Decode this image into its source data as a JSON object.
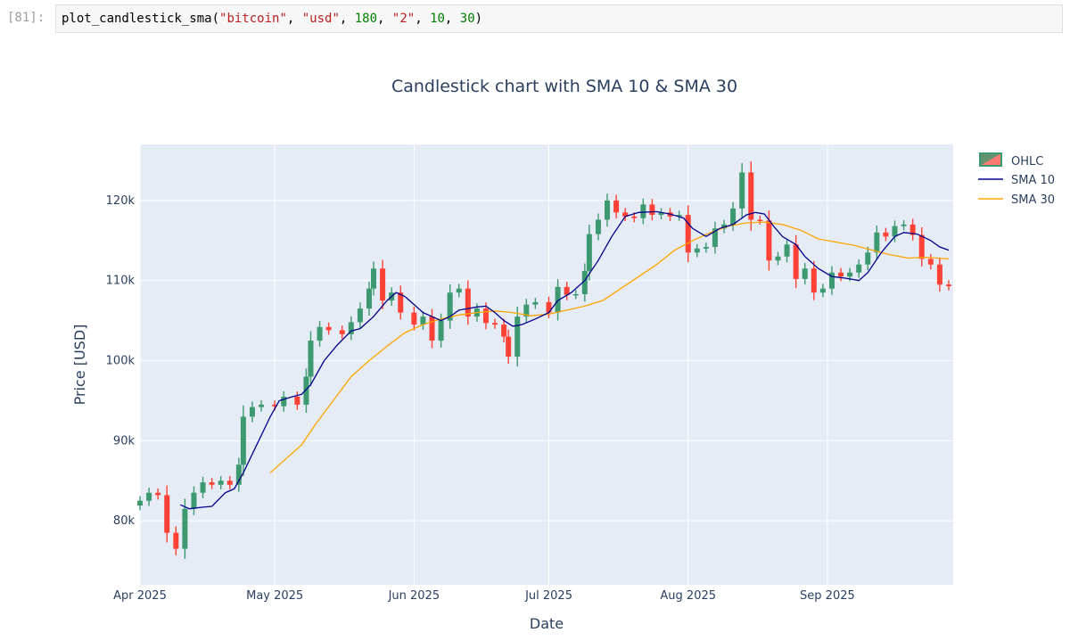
{
  "notebook": {
    "prompt": "[81]:",
    "code": {
      "fn": "plot_candlestick_sma(",
      "arg1": "\"bitcoin\"",
      "arg2": "\"usd\"",
      "arg3": "180",
      "arg4": "\"2\"",
      "arg5": "10",
      "arg6": "30",
      "close": ")",
      "sep": ", "
    }
  },
  "chart_data": {
    "type": "candlestick",
    "title": "Candlestick chart with SMA 10 & SMA 30",
    "xlabel": "Date",
    "ylabel": "Price [USD]",
    "xlim": [
      "2025-04-01",
      "2025-09-29"
    ],
    "ylim": [
      72000,
      127000
    ],
    "xticks": [
      {
        "date": "2025-04-01",
        "label": "Apr 2025"
      },
      {
        "date": "2025-05-01",
        "label": "May 2025"
      },
      {
        "date": "2025-06-01",
        "label": "Jun 2025"
      },
      {
        "date": "2025-07-01",
        "label": "Jul 2025"
      },
      {
        "date": "2025-08-01",
        "label": "Aug 2025"
      },
      {
        "date": "2025-09-01",
        "label": "Sep 2025"
      }
    ],
    "yticks": [
      {
        "value": 80000,
        "label": "80k"
      },
      {
        "value": 90000,
        "label": "90k"
      },
      {
        "value": 100000,
        "label": "100k"
      },
      {
        "value": 110000,
        "label": "110k"
      },
      {
        "value": 120000,
        "label": "120k"
      }
    ],
    "grid": true,
    "legend_position": "top-right",
    "colors": {
      "increasing": "#3d9970",
      "decreasing": "#ff4136",
      "sma_short": "#00008b",
      "sma_long": "#ffa500",
      "plot_bg": "#e5ecf6",
      "grid": "#ffffff"
    },
    "legend": [
      "OHLC",
      "SMA 10",
      "SMA 30"
    ],
    "close_points": [
      [
        "2025-04-01",
        82500
      ],
      [
        "2025-04-03",
        83500
      ],
      [
        "2025-04-05",
        83200
      ],
      [
        "2025-04-07",
        78500
      ],
      [
        "2025-04-09",
        76500
      ],
      [
        "2025-04-11",
        81500
      ],
      [
        "2025-04-13",
        83500
      ],
      [
        "2025-04-15",
        84800
      ],
      [
        "2025-04-17",
        84500
      ],
      [
        "2025-04-19",
        85000
      ],
      [
        "2025-04-21",
        84500
      ],
      [
        "2025-04-23",
        87000
      ],
      [
        "2025-04-24",
        93000
      ],
      [
        "2025-04-26",
        94200
      ],
      [
        "2025-04-28",
        94500
      ],
      [
        "2025-05-01",
        94300
      ],
      [
        "2025-05-03",
        95500
      ],
      [
        "2025-05-06",
        94500
      ],
      [
        "2025-05-08",
        98000
      ],
      [
        "2025-05-09",
        102500
      ],
      [
        "2025-05-11",
        104200
      ],
      [
        "2025-05-13",
        103800
      ],
      [
        "2025-05-16",
        103300
      ],
      [
        "2025-05-18",
        104800
      ],
      [
        "2025-05-20",
        106500
      ],
      [
        "2025-05-22",
        109000
      ],
      [
        "2025-05-23",
        111500
      ],
      [
        "2025-05-25",
        107500
      ],
      [
        "2025-05-27",
        108500
      ],
      [
        "2025-05-29",
        106000
      ],
      [
        "2025-06-01",
        104500
      ],
      [
        "2025-06-03",
        105500
      ],
      [
        "2025-06-05",
        102500
      ],
      [
        "2025-06-07",
        105000
      ],
      [
        "2025-06-09",
        108500
      ],
      [
        "2025-06-11",
        109000
      ],
      [
        "2025-06-13",
        105500
      ],
      [
        "2025-06-15",
        106500
      ],
      [
        "2025-06-17",
        104700
      ],
      [
        "2025-06-19",
        104500
      ],
      [
        "2025-06-21",
        103000
      ],
      [
        "2025-06-22",
        100500
      ],
      [
        "2025-06-24",
        105500
      ],
      [
        "2025-06-26",
        107000
      ],
      [
        "2025-06-28",
        107300
      ],
      [
        "2025-07-01",
        106000
      ],
      [
        "2025-07-03",
        109200
      ],
      [
        "2025-07-05",
        108200
      ],
      [
        "2025-07-07",
        108300
      ],
      [
        "2025-07-09",
        111200
      ],
      [
        "2025-07-10",
        115800
      ],
      [
        "2025-07-12",
        117600
      ],
      [
        "2025-07-14",
        120000
      ],
      [
        "2025-07-16",
        118500
      ],
      [
        "2025-07-18",
        118000
      ],
      [
        "2025-07-20",
        117800
      ],
      [
        "2025-07-22",
        119500
      ],
      [
        "2025-07-24",
        118200
      ],
      [
        "2025-07-26",
        118500
      ],
      [
        "2025-07-28",
        118000
      ],
      [
        "2025-07-30",
        118200
      ],
      [
        "2025-08-01",
        113500
      ],
      [
        "2025-08-03",
        114000
      ],
      [
        "2025-08-05",
        114200
      ],
      [
        "2025-08-07",
        116500
      ],
      [
        "2025-08-09",
        117000
      ],
      [
        "2025-08-11",
        119000
      ],
      [
        "2025-08-13",
        123500
      ],
      [
        "2025-08-15",
        117600
      ],
      [
        "2025-08-17",
        117500
      ],
      [
        "2025-08-19",
        112500
      ],
      [
        "2025-08-21",
        113000
      ],
      [
        "2025-08-23",
        114500
      ],
      [
        "2025-08-25",
        110200
      ],
      [
        "2025-08-27",
        111500
      ],
      [
        "2025-08-29",
        108500
      ],
      [
        "2025-08-31",
        109000
      ],
      [
        "2025-09-02",
        111000
      ],
      [
        "2025-09-04",
        110500
      ],
      [
        "2025-09-06",
        111000
      ],
      [
        "2025-09-08",
        112000
      ],
      [
        "2025-09-10",
        113500
      ],
      [
        "2025-09-12",
        116000
      ],
      [
        "2025-09-14",
        115500
      ],
      [
        "2025-09-16",
        116800
      ],
      [
        "2025-09-18",
        117000
      ],
      [
        "2025-09-20",
        115700
      ],
      [
        "2025-09-22",
        112700
      ],
      [
        "2025-09-24",
        112000
      ],
      [
        "2025-09-26",
        109500
      ],
      [
        "2025-09-28",
        109300
      ]
    ],
    "sma_10": [
      [
        "2025-04-10",
        82000
      ],
      [
        "2025-04-12",
        81500
      ],
      [
        "2025-04-15",
        81700
      ],
      [
        "2025-04-17",
        81800
      ],
      [
        "2025-04-20",
        83500
      ],
      [
        "2025-04-22",
        84000
      ],
      [
        "2025-04-24",
        86000
      ],
      [
        "2025-04-27",
        89500
      ],
      [
        "2025-04-30",
        93000
      ],
      [
        "2025-05-02",
        95000
      ],
      [
        "2025-05-05",
        95500
      ],
      [
        "2025-05-07",
        95800
      ],
      [
        "2025-05-09",
        97000
      ],
      [
        "2025-05-12",
        100000
      ],
      [
        "2025-05-15",
        102000
      ],
      [
        "2025-05-18",
        103700
      ],
      [
        "2025-05-20",
        104000
      ],
      [
        "2025-05-23",
        105500
      ],
      [
        "2025-05-26",
        107500
      ],
      [
        "2025-05-28",
        108500
      ],
      [
        "2025-05-30",
        108000
      ],
      [
        "2025-06-01",
        107000
      ],
      [
        "2025-06-03",
        106000
      ],
      [
        "2025-06-05",
        105500
      ],
      [
        "2025-06-07",
        105000
      ],
      [
        "2025-06-09",
        105500
      ],
      [
        "2025-06-11",
        106300
      ],
      [
        "2025-06-13",
        106500
      ],
      [
        "2025-06-15",
        106700
      ],
      [
        "2025-06-17",
        106800
      ],
      [
        "2025-06-19",
        106000
      ],
      [
        "2025-06-21",
        105000
      ],
      [
        "2025-06-23",
        104300
      ],
      [
        "2025-06-25",
        104500
      ],
      [
        "2025-06-28",
        105200
      ],
      [
        "2025-07-01",
        106000
      ],
      [
        "2025-07-03",
        107500
      ],
      [
        "2025-07-06",
        108500
      ],
      [
        "2025-07-09",
        110000
      ],
      [
        "2025-07-12",
        112500
      ],
      [
        "2025-07-15",
        115500
      ],
      [
        "2025-07-18",
        118000
      ],
      [
        "2025-07-21",
        118500
      ],
      [
        "2025-07-25",
        118600
      ],
      [
        "2025-07-28",
        118300
      ],
      [
        "2025-07-31",
        117800
      ],
      [
        "2025-08-02",
        116500
      ],
      [
        "2025-08-05",
        115500
      ],
      [
        "2025-08-08",
        116500
      ],
      [
        "2025-08-11",
        117000
      ],
      [
        "2025-08-14",
        118200
      ],
      [
        "2025-08-16",
        118500
      ],
      [
        "2025-08-18",
        118300
      ],
      [
        "2025-08-20",
        116800
      ],
      [
        "2025-08-22",
        115500
      ],
      [
        "2025-08-25",
        114500
      ],
      [
        "2025-08-27",
        113000
      ],
      [
        "2025-08-30",
        111500
      ],
      [
        "2025-09-02",
        110500
      ],
      [
        "2025-09-05",
        110300
      ],
      [
        "2025-09-08",
        110000
      ],
      [
        "2025-09-10",
        111000
      ],
      [
        "2025-09-13",
        113500
      ],
      [
        "2025-09-16",
        115500
      ],
      [
        "2025-09-18",
        116000
      ],
      [
        "2025-09-21",
        115800
      ],
      [
        "2025-09-24",
        115000
      ],
      [
        "2025-09-26",
        114200
      ],
      [
        "2025-09-28",
        113800
      ]
    ],
    "sma_30": [
      [
        "2025-04-30",
        86000
      ],
      [
        "2025-05-04",
        88000
      ],
      [
        "2025-05-07",
        89500
      ],
      [
        "2025-05-10",
        92000
      ],
      [
        "2025-05-14",
        95000
      ],
      [
        "2025-05-18",
        98000
      ],
      [
        "2025-05-22",
        100000
      ],
      [
        "2025-05-26",
        101800
      ],
      [
        "2025-05-30",
        103500
      ],
      [
        "2025-06-03",
        104500
      ],
      [
        "2025-06-07",
        105200
      ],
      [
        "2025-06-11",
        105700
      ],
      [
        "2025-06-15",
        106000
      ],
      [
        "2025-06-19",
        106200
      ],
      [
        "2025-06-23",
        106000
      ],
      [
        "2025-06-27",
        105600
      ],
      [
        "2025-07-01",
        105800
      ],
      [
        "2025-07-05",
        106300
      ],
      [
        "2025-07-09",
        106800
      ],
      [
        "2025-07-13",
        107500
      ],
      [
        "2025-07-17",
        109000
      ],
      [
        "2025-07-21",
        110500
      ],
      [
        "2025-07-25",
        112000
      ],
      [
        "2025-07-29",
        113800
      ],
      [
        "2025-08-02",
        115000
      ],
      [
        "2025-08-06",
        116000
      ],
      [
        "2025-08-10",
        116800
      ],
      [
        "2025-08-14",
        117200
      ],
      [
        "2025-08-18",
        117300
      ],
      [
        "2025-08-22",
        117000
      ],
      [
        "2025-08-26",
        116300
      ],
      [
        "2025-08-30",
        115200
      ],
      [
        "2025-09-03",
        114800
      ],
      [
        "2025-09-07",
        114400
      ],
      [
        "2025-09-11",
        113800
      ],
      [
        "2025-09-15",
        113200
      ],
      [
        "2025-09-19",
        112800
      ],
      [
        "2025-09-23",
        112900
      ],
      [
        "2025-09-28",
        112700
      ]
    ]
  }
}
